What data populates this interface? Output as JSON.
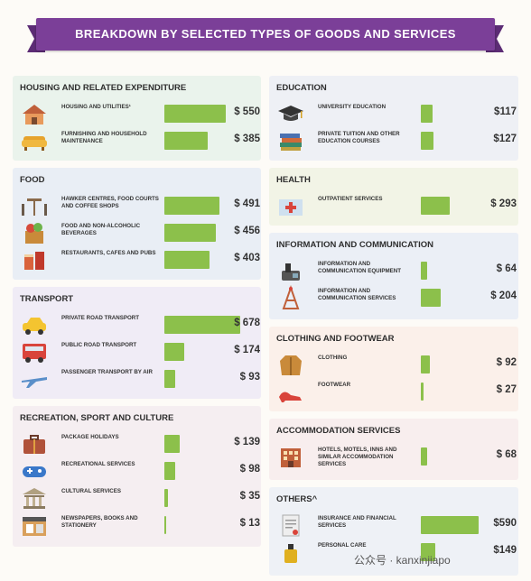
{
  "title": "BREAKDOWN BY SELECTED TYPES OF GOODS AND SERVICES",
  "watermark": "公众号 · kanxinjiapo",
  "colors": {
    "bar": "#8cc04b",
    "banner": "#7b3f98"
  },
  "chart_data": {
    "type": "bar",
    "orientation": "horizontal",
    "title": "BREAKDOWN BY SELECTED TYPES OF GOODS AND SERVICES",
    "groups": [
      {
        "name": "HOUSING AND RELATED EXPENDITURE",
        "items": [
          {
            "label": "HOUSING AND UTILITIES¹",
            "value": 550,
            "display": "$ 550",
            "icon": "house-icon"
          },
          {
            "label": "FURNISHING AND HOUSEHOLD MAINTENANCE",
            "value": 385,
            "display": "$ 385",
            "icon": "sofa-icon"
          }
        ]
      },
      {
        "name": "FOOD",
        "items": [
          {
            "label": "HAWKER CENTRES, FOOD COURTS AND COFFEE SHOPS",
            "value": 491,
            "display": "$ 491",
            "icon": "table-chairs-icon"
          },
          {
            "label": "FOOD AND NON-ALCOHOLIC BEVERAGES",
            "value": 456,
            "display": "$ 456",
            "icon": "groceries-icon"
          },
          {
            "label": "RESTAURANTS, CAFES AND PUBS",
            "value": 403,
            "display": "$ 403",
            "icon": "drinks-icon"
          }
        ]
      },
      {
        "name": "TRANSPORT",
        "items": [
          {
            "label": "PRIVATE ROAD TRANSPORT",
            "value": 678,
            "display": "$ 678",
            "icon": "car-icon"
          },
          {
            "label": "PUBLIC ROAD TRANSPORT",
            "value": 174,
            "display": "$ 174",
            "icon": "bus-icon"
          },
          {
            "label": "PASSENGER TRANSPORT BY AIR",
            "value": 93,
            "display": "$ 93",
            "icon": "airplane-icon"
          }
        ]
      },
      {
        "name": "RECREATION, SPORT AND CULTURE",
        "items": [
          {
            "label": "PACKAGE HOLIDAYS",
            "value": 139,
            "display": "$ 139",
            "icon": "luggage-icon"
          },
          {
            "label": "RECREATIONAL SERVICES",
            "value": 98,
            "display": "$ 98",
            "icon": "gamepad-icon"
          },
          {
            "label": "CULTURAL SERVICES",
            "value": 35,
            "display": "$ 35",
            "icon": "museum-icon"
          },
          {
            "label": "NEWSPAPERS, BOOKS AND STATIONERY",
            "value": 13,
            "display": "$ 13",
            "icon": "newsstand-icon"
          }
        ]
      },
      {
        "name": "EDUCATION",
        "items": [
          {
            "label": "UNIVERSITY EDUCATION",
            "value": 117,
            "display": "$117",
            "icon": "graduation-cap-icon"
          },
          {
            "label": "PRIVATE TUITION AND OTHER EDUCATION COURSES",
            "value": 127,
            "display": "$127",
            "icon": "books-icon"
          }
        ]
      },
      {
        "name": "HEALTH",
        "items": [
          {
            "label": "OUTPATIENT SERVICES",
            "value": 293,
            "display": "$ 293",
            "icon": "clinic-icon"
          }
        ]
      },
      {
        "name": "INFORMATION AND COMMUNICATION",
        "items": [
          {
            "label": "INFORMATION AND COMMUNICATION EQUIPMENT",
            "value": 64,
            "display": "$ 64",
            "icon": "phone-icon"
          },
          {
            "label": "INFORMATION AND COMMUNICATION SERVICES",
            "value": 204,
            "display": "$ 204",
            "icon": "tower-icon"
          }
        ]
      },
      {
        "name": "CLOTHING AND FOOTWEAR",
        "items": [
          {
            "label": "CLOTHING",
            "value": 92,
            "display": "$ 92",
            "icon": "coat-icon"
          },
          {
            "label": "FOOTWEAR",
            "value": 27,
            "display": "$ 27",
            "icon": "heels-icon"
          }
        ]
      },
      {
        "name": "ACCOMMODATION SERVICES",
        "items": [
          {
            "label": "HOTELS, MOTELS, INNS AND SIMILAR ACCOMMODATION SERVICES",
            "value": 68,
            "display": "$ 68",
            "icon": "hotel-icon"
          }
        ]
      },
      {
        "name": "OTHERS^",
        "items": [
          {
            "label": "INSURANCE AND FINANCIAL SERVICES",
            "value": 590,
            "display": "$590",
            "icon": "document-icon"
          },
          {
            "label": "PERSONAL CARE",
            "value": 149,
            "display": "$149",
            "icon": "perfume-icon"
          }
        ]
      }
    ]
  }
}
